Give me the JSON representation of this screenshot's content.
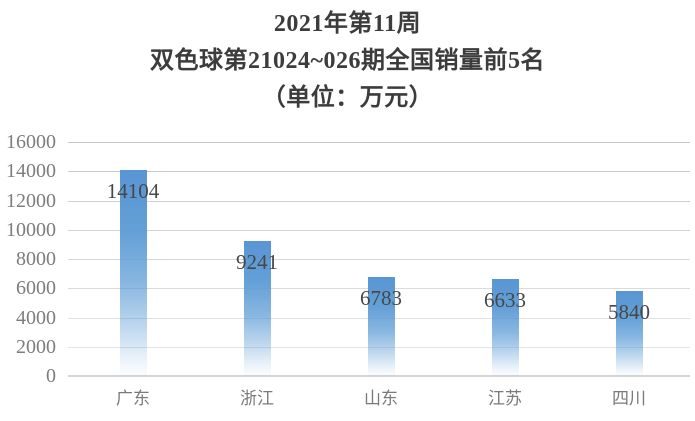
{
  "chart_data": {
    "type": "bar",
    "title_lines": [
      "2021年第11周",
      "双色球第21024~026期全国销量前5名",
      "（单位：万元）"
    ],
    "title": "2021年第11周 双色球第21024~026期全国销量前5名（单位：万元）",
    "categories": [
      "广东",
      "浙江",
      "山东",
      "江苏",
      "四川"
    ],
    "values": [
      14104,
      9241,
      6783,
      6633,
      5840
    ],
    "data_labels": [
      "14104",
      "9241",
      "6783",
      "6633",
      "5840"
    ],
    "ylim": [
      0,
      16000
    ],
    "yticks": [
      0,
      2000,
      4000,
      6000,
      8000,
      10000,
      12000,
      14000,
      16000
    ],
    "ytick_labels": [
      "0",
      "2000",
      "4000",
      "6000",
      "8000",
      "10000",
      "12000",
      "14000",
      "16000"
    ],
    "xlabel": "",
    "ylabel": "",
    "grid": true,
    "legend": false,
    "colors": {
      "bar_top": "#5B9BD5",
      "bar_bottom": "#FFFFFF",
      "gridline_top": "#C6C6C6",
      "gridline_bottom": "#E8E8E8",
      "axis_line": "#D4D4D4",
      "title_text": "#3C3C3C",
      "tick_text": "#7D7D7D",
      "value_label_text": "#474747",
      "background": "#FFFFFF"
    }
  }
}
